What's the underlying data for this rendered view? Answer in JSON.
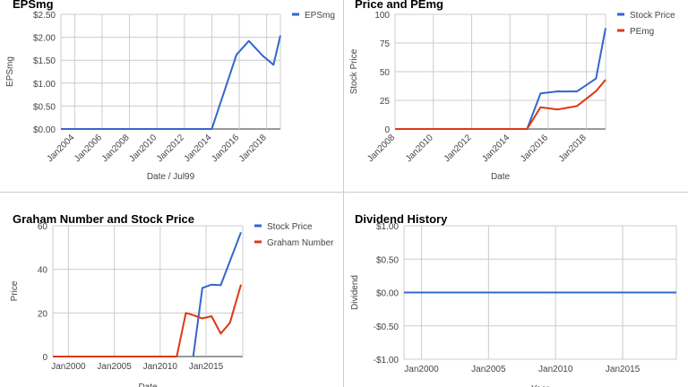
{
  "colors": {
    "blue": "#3366cc",
    "red": "#dc3912",
    "grid": "#cccccc",
    "axis": "#333333",
    "text": "#444444",
    "title": "#000000"
  },
  "chart_data": [
    {
      "type": "line",
      "title": "EPSmg",
      "xlabel": "Date / Jul99",
      "ylabel": "EPSmg",
      "x_ticks": [
        "Jan2004",
        "Jan2006",
        "Jan2008",
        "Jan2010",
        "Jan2012",
        "Jan2014",
        "Jan2016",
        "Jan2018"
      ],
      "y_ticks": [
        "$0.00",
        "$0.50",
        "$1.00",
        "$1.50",
        "$2.00",
        "$2.50"
      ],
      "xlim": [
        2003.0,
        2019.0
      ],
      "ylim": [
        0,
        2.5
      ],
      "grid": true,
      "legend": "right",
      "series": [
        {
          "name": "EPSmg",
          "color": "#3366cc",
          "x": [
            2003.0,
            2014.0,
            2015.8,
            2016.7,
            2017.7,
            2018.5,
            2019.0
          ],
          "y": [
            0,
            0,
            1.62,
            1.92,
            1.6,
            1.4,
            2.04
          ]
        }
      ]
    },
    {
      "type": "line",
      "title": "Price and PEmg",
      "xlabel": "Date",
      "ylabel": "Stock Price",
      "x_ticks": [
        "Jan2008",
        "Jan2010",
        "Jan2012",
        "Jan2014",
        "Jan2016",
        "Jan2018"
      ],
      "y_ticks": [
        "0",
        "25",
        "50",
        "75",
        "100"
      ],
      "xlim": [
        2008.0,
        2019.0
      ],
      "ylim": [
        0,
        100
      ],
      "grid": true,
      "legend": "right",
      "series": [
        {
          "name": "Stock Price",
          "color": "#3366cc",
          "x": [
            2008.0,
            2014.9,
            2015.6,
            2016.5,
            2017.5,
            2018.5,
            2019.0
          ],
          "y": [
            0,
            0,
            31,
            32.8,
            32.7,
            44,
            88
          ]
        },
        {
          "name": "PEmg",
          "color": "#dc3912",
          "x": [
            2008.0,
            2014.9,
            2015.6,
            2016.5,
            2017.5,
            2018.5,
            2019.0
          ],
          "y": [
            0,
            0,
            19,
            17,
            20,
            33,
            43
          ]
        }
      ]
    },
    {
      "type": "line",
      "title": "Graham Number and Stock Price",
      "xlabel": "Date",
      "ylabel": "Price",
      "x_ticks": [
        "Jan2000",
        "Jan2005",
        "Jan2010",
        "Jan2015"
      ],
      "y_ticks": [
        "0",
        "20",
        "40",
        "60"
      ],
      "xlim": [
        1998.3,
        2019.0
      ],
      "ylim": [
        0,
        60
      ],
      "grid": true,
      "legend": "right",
      "series": [
        {
          "name": "Stock Price",
          "color": "#3366cc",
          "x": [
            2013.6,
            2014.6,
            2015.6,
            2016.6,
            2018.8
          ],
          "y": [
            0,
            31.5,
            33,
            32.7,
            57
          ]
        },
        {
          "name": "Graham Number",
          "color": "#dc3912",
          "x": [
            1998.3,
            2011.8,
            2012.8,
            2013.6,
            2014.6,
            2015.6,
            2016.6,
            2017.6,
            2018.8
          ],
          "y": [
            0,
            0,
            20,
            19,
            17.5,
            18.5,
            10.5,
            15.5,
            33
          ]
        }
      ]
    },
    {
      "type": "line",
      "title": "Dividend History",
      "xlabel": "Year",
      "ylabel": "Dividend",
      "x_ticks": [
        "Jan2000",
        "Jan2005",
        "Jan2010",
        "Jan2015"
      ],
      "y_ticks": [
        "-$1.00",
        "-$0.50",
        "$0.00",
        "$0.50",
        "$1.00"
      ],
      "xlim": [
        1998.7,
        2019.0
      ],
      "ylim": [
        -1,
        1
      ],
      "grid": true,
      "legend": "none",
      "series": [
        {
          "color": "#3366cc",
          "x": [
            1998.7,
            2019.0
          ],
          "y": [
            0,
            0
          ]
        }
      ]
    }
  ]
}
